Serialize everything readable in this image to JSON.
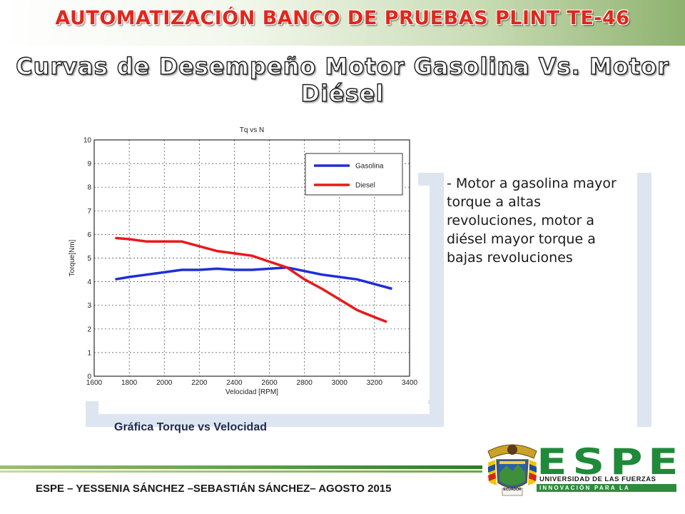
{
  "header": {
    "title": "AUTOMATIZACIÓN BANCO DE PRUEBAS PLINT TE-46",
    "subtitle": "Curvas de Desempeño Motor Gasolina Vs. Motor Diésel"
  },
  "chart_data": {
    "type": "line",
    "title": "Tq vs N",
    "xlabel": "Velocidad [RPM]",
    "ylabel": "Torque[Nm]",
    "xlim": [
      1600,
      3400
    ],
    "ylim": [
      0,
      10
    ],
    "xticks": [
      1600,
      1800,
      2000,
      2200,
      2400,
      2600,
      2800,
      3000,
      3200,
      3400
    ],
    "yticks": [
      0,
      1,
      2,
      3,
      4,
      5,
      6,
      7,
      8,
      9,
      10
    ],
    "grid": true,
    "legend_position": "top-right",
    "series": [
      {
        "name": "Gasolina",
        "color": "#1f2fd6",
        "x": [
          1720,
          1800,
          1900,
          2000,
          2100,
          2200,
          2300,
          2400,
          2500,
          2600,
          2700,
          2800,
          2900,
          3000,
          3100,
          3200,
          3300
        ],
        "y": [
          4.1,
          4.2,
          4.3,
          4.4,
          4.5,
          4.5,
          4.55,
          4.5,
          4.5,
          4.55,
          4.6,
          4.45,
          4.3,
          4.2,
          4.1,
          3.9,
          3.7
        ]
      },
      {
        "name": "Diesel",
        "color": "#e8191c",
        "x": [
          1720,
          1800,
          1900,
          2000,
          2100,
          2200,
          2300,
          2400,
          2500,
          2600,
          2700,
          2800,
          2900,
          3000,
          3100,
          3200,
          3270
        ],
        "y": [
          5.85,
          5.8,
          5.7,
          5.7,
          5.7,
          5.5,
          5.3,
          5.2,
          5.1,
          4.85,
          4.6,
          4.1,
          3.7,
          3.25,
          2.8,
          2.5,
          2.3
        ]
      }
    ]
  },
  "figure": {
    "caption": "Gráfica Torque vs Velocidad"
  },
  "notes": {
    "text": "- Motor a gasolina mayor torque a altas revoluciones, motor a diésel mayor torque a bajas revoluciones"
  },
  "footer": {
    "text": "ESPE – YESSENIA SÁNCHEZ –SEBASTIÁN SÁNCHEZ– AGOSTO 2015"
  },
  "logo": {
    "letters": "ESPE",
    "university": "UNIVERSIDAD DE LAS FUERZAS ARMADAS",
    "motto": "INNOVACIÓN PARA LA EXCELENCIA",
    "seal_text": "ECUADOR"
  },
  "colors": {
    "title_red": "#e0271b",
    "espe_green": "#1f8a3a",
    "panel_blue": "#dde5f0"
  }
}
